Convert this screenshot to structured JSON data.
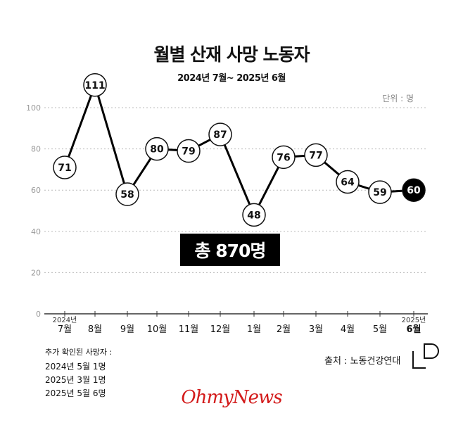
{
  "title": "월별 산재 사망 노동자",
  "subtitle": "2024년 7월~ 2025년 6월",
  "unit": "단위 : 명",
  "total": "총 870명",
  "chart_data": {
    "type": "line",
    "title": "월별 산재 사망 노동자",
    "categories": [
      "7월",
      "8월",
      "9월",
      "10월",
      "11월",
      "12월",
      "1월",
      "2월",
      "3월",
      "4월",
      "5월",
      "6월"
    ],
    "year_labels": [
      {
        "text": "2024년",
        "index": 0
      },
      {
        "text": "2025년",
        "index": 11
      }
    ],
    "values": [
      71,
      111,
      58,
      80,
      79,
      87,
      48,
      76,
      77,
      64,
      59,
      60
    ],
    "highlight_index": 11,
    "y_ticks": [
      0,
      20,
      40,
      60,
      80,
      100
    ],
    "ylim": [
      0,
      111
    ],
    "grid": true
  },
  "notes": {
    "header": "추가 확인된 사망자 :",
    "lines": [
      "2024년 5월 1명",
      "2025년 3월 1명",
      "2025년 5월 6명"
    ]
  },
  "source": "출처 : 노동건강연대",
  "brand": "OhmyNews",
  "colors": {
    "line": "#000000",
    "grid": "#bbbbbb",
    "brand": "#d31b1b",
    "highlight": "#000000"
  }
}
